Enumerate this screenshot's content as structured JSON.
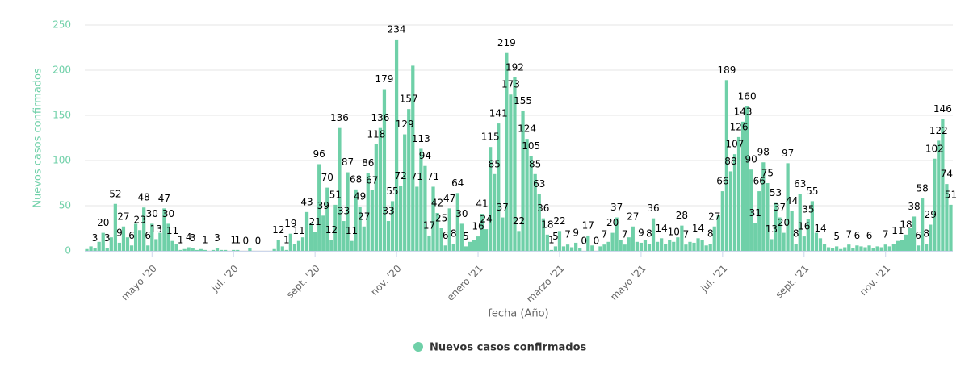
{
  "chart_data": {
    "type": "bar",
    "x_label": "fecha (Año)",
    "y_label": "Nuevos casos confirmados",
    "ylim": [
      0,
      250
    ],
    "yticks": [
      0,
      50,
      100,
      150,
      200,
      250
    ],
    "grid": true,
    "legend": "bottom",
    "categories": [
      null,
      null,
      null,
      null,
      null,
      null,
      null,
      null,
      null,
      null,
      null,
      null,
      null,
      null,
      null,
      null,
      "mayo '20",
      null,
      null,
      null,
      null,
      null,
      null,
      null,
      null,
      null,
      null,
      null,
      null,
      null,
      null,
      null,
      null,
      null,
      null,
      null,
      "jul. '20",
      null,
      null,
      null,
      null,
      null,
      null,
      null,
      null,
      null,
      null,
      null,
      null,
      null,
      null,
      null,
      null,
      null,
      null,
      null,
      "sept. '20",
      null,
      null,
      null,
      null,
      null,
      null,
      null,
      null,
      null,
      null,
      null,
      null,
      null,
      null,
      null,
      null,
      null,
      null,
      null,
      "nov. '20",
      null,
      null,
      null,
      null,
      null,
      null,
      null,
      null,
      null,
      null,
      null,
      null,
      null,
      null,
      null,
      null,
      null,
      null,
      null,
      "enero '21",
      null,
      null,
      null,
      null,
      null,
      null,
      null,
      null,
      null,
      null,
      null,
      null,
      null,
      null,
      null,
      null,
      null,
      null,
      null,
      "marzo '21",
      null,
      null,
      null,
      null,
      null,
      null,
      null,
      null,
      null,
      null,
      null,
      null,
      null,
      null,
      null,
      null,
      null,
      null,
      null,
      "mayo '21",
      null,
      null,
      null,
      null,
      null,
      null,
      null,
      null,
      null,
      null,
      null,
      null,
      null,
      null,
      null,
      null,
      null,
      null,
      null,
      "jul. '21",
      null,
      null,
      null,
      null,
      null,
      null,
      null,
      null,
      null,
      null,
      null,
      null,
      null,
      null,
      null,
      null,
      null,
      null,
      null,
      "sept. '21",
      null,
      null,
      null,
      null,
      null,
      null,
      null,
      null,
      null,
      null,
      null,
      null,
      null,
      null,
      null,
      null,
      null,
      null,
      null,
      "nov. '21",
      null,
      null,
      null,
      null,
      null,
      null,
      null,
      null,
      null,
      null,
      null,
      null,
      null,
      null,
      null,
      null
    ],
    "series": [
      {
        "name": "Nuevos casos confirmados",
        "color": "#6fd0a8",
        "values": [
          2,
          5,
          3,
          10,
          20,
          3,
          15,
          52,
          9,
          27,
          15,
          6,
          30,
          23,
          48,
          6,
          30,
          13,
          20,
          47,
          30,
          11,
          8,
          1,
          2,
          4,
          3,
          1,
          2,
          1,
          0,
          1,
          3,
          1,
          1,
          0,
          1,
          1,
          0,
          0,
          3,
          0,
          0,
          0,
          0,
          0,
          2,
          12,
          5,
          1,
          19,
          8,
          11,
          15,
          43,
          30,
          21,
          96,
          39,
          70,
          12,
          51,
          136,
          33,
          87,
          11,
          68,
          49,
          27,
          86,
          67,
          118,
          136,
          179,
          33,
          55,
          234,
          72,
          129,
          157,
          205,
          71,
          113,
          94,
          17,
          71,
          42,
          25,
          6,
          47,
          8,
          64,
          30,
          5,
          10,
          12,
          16,
          41,
          24,
          115,
          85,
          141,
          37,
          219,
          173,
          192,
          22,
          155,
          124,
          105,
          85,
          63,
          36,
          18,
          1,
          5,
          22,
          5,
          7,
          4,
          9,
          3,
          0,
          17,
          6,
          0,
          5,
          7,
          10,
          20,
          37,
          12,
          7,
          15,
          27,
          10,
          9,
          12,
          8,
          36,
          10,
          14,
          8,
          12,
          10,
          15,
          28,
          7,
          10,
          9,
          14,
          12,
          6,
          8,
          27,
          40,
          66,
          189,
          88,
          107,
          126,
          143,
          160,
          90,
          31,
          66,
          98,
          75,
          13,
          53,
          37,
          20,
          97,
          44,
          8,
          63,
          16,
          35,
          55,
          20,
          14,
          8,
          4,
          3,
          5,
          2,
          4,
          7,
          3,
          6,
          5,
          4,
          6,
          3,
          5,
          4,
          7,
          5,
          8,
          11,
          12,
          18,
          25,
          38,
          6,
          58,
          8,
          29,
          102,
          122,
          146,
          74,
          51
        ],
        "value_labels": [
          null,
          null,
          "3",
          null,
          "20",
          "3",
          null,
          "52",
          "9",
          "27",
          null,
          "6",
          null,
          "23",
          "48",
          "6",
          "30",
          "13",
          null,
          "47",
          "30",
          "11",
          null,
          "1",
          null,
          "4",
          "3",
          null,
          null,
          "1",
          null,
          null,
          "3",
          null,
          null,
          null,
          "1",
          "1",
          null,
          "0",
          null,
          null,
          "0",
          null,
          null,
          null,
          null,
          "12",
          null,
          "1",
          "19",
          null,
          "11",
          null,
          "43",
          null,
          "21",
          "96",
          "39",
          "70",
          "12",
          "51",
          "136",
          "33",
          "87",
          "11",
          "68",
          "49",
          "27",
          "86",
          "67",
          "118",
          "136",
          "179",
          "33",
          "55",
          "234",
          "72",
          "129",
          "157",
          null,
          "71",
          "113",
          "94",
          "17",
          "71",
          "42",
          "25",
          "6",
          "47",
          "8",
          "64",
          "30",
          "5",
          null,
          null,
          "16",
          "41",
          "24",
          "115",
          "85",
          "141",
          "37",
          "219",
          "173",
          "192",
          "22",
          "155",
          "124",
          "105",
          "85",
          "63",
          "36",
          "18",
          "1",
          "5",
          "22",
          null,
          "7",
          null,
          "9",
          null,
          "0",
          "17",
          null,
          "0",
          null,
          "7",
          null,
          "20",
          "37",
          null,
          "7",
          null,
          "27",
          null,
          "9",
          null,
          "8",
          "36",
          null,
          "14",
          null,
          null,
          "10",
          null,
          "28",
          "7",
          null,
          null,
          "14",
          null,
          null,
          "8",
          "27",
          null,
          "66",
          "189",
          "88",
          "107",
          "126",
          "143",
          "160",
          "90",
          "31",
          "66",
          "98",
          "75",
          "13",
          "53",
          "37",
          "20",
          "97",
          "44",
          "8",
          "63",
          "16",
          "35",
          "55",
          null,
          "14",
          null,
          null,
          null,
          "5",
          null,
          null,
          "7",
          null,
          "6",
          null,
          null,
          "6",
          null,
          null,
          null,
          "7",
          null,
          null,
          "11",
          null,
          "18",
          null,
          "38",
          "6",
          "58",
          "8",
          "29",
          "102",
          "122",
          "146",
          "74",
          "51"
        ]
      }
    ]
  }
}
